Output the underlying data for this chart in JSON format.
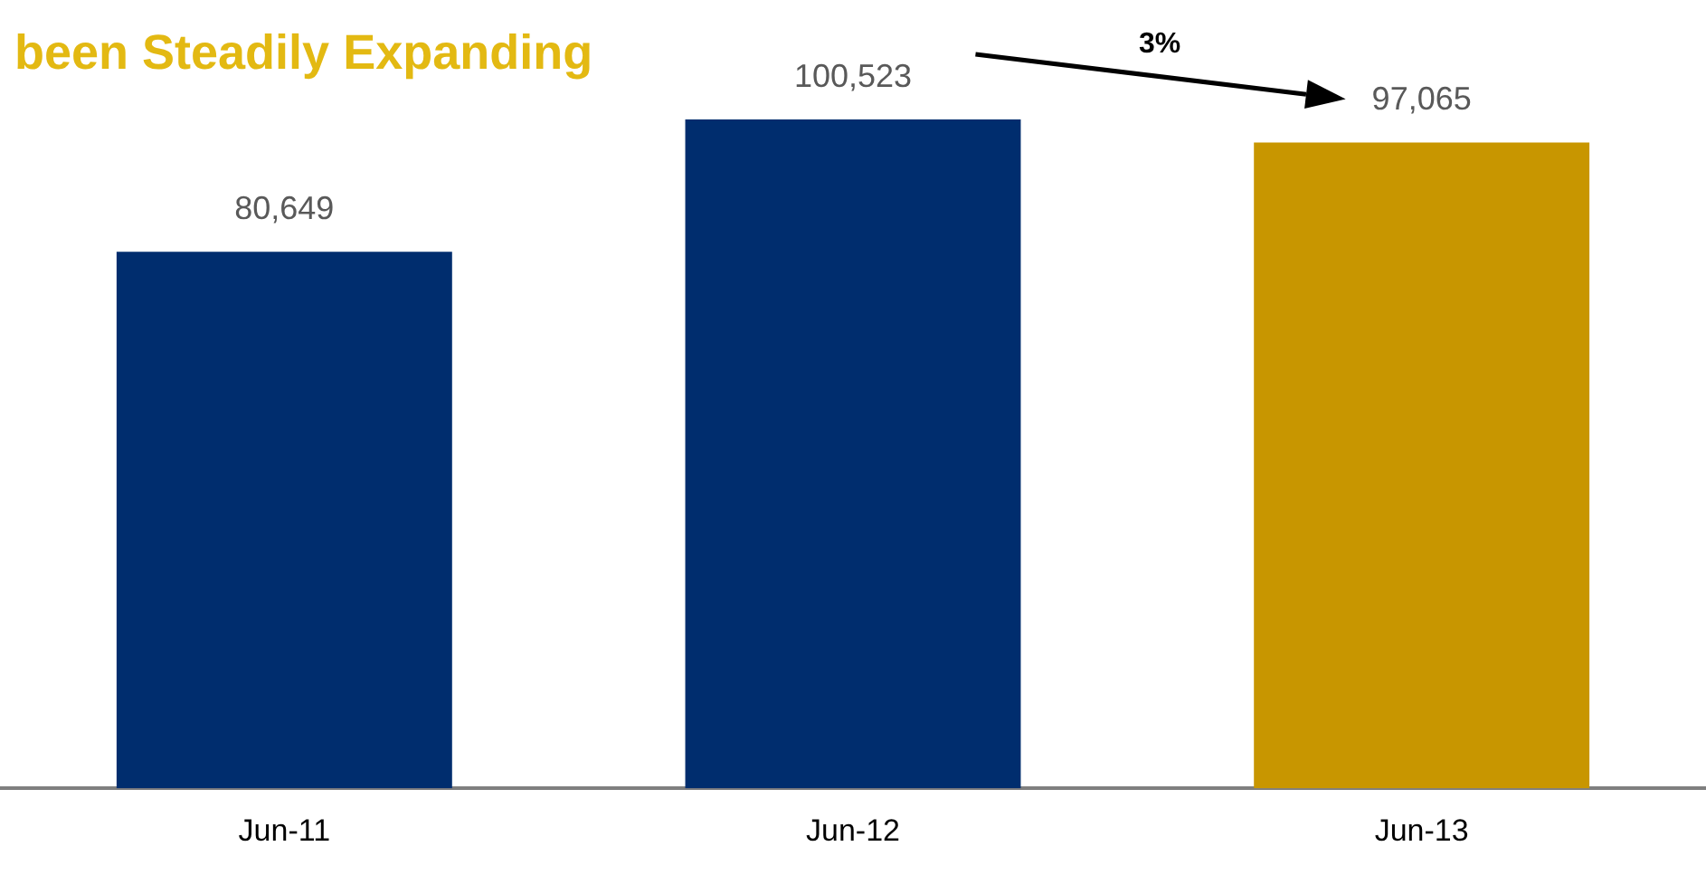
{
  "chart_data": {
    "type": "bar",
    "title": "been Steadily Expanding",
    "categories": [
      "Jun-11",
      "Jun-12",
      "Jun-13"
    ],
    "values": [
      80649,
      100523,
      97065
    ],
    "colors": [
      "#002d6e",
      "#002d6e",
      "#c89600"
    ],
    "value_labels": [
      "80,649",
      "100,523",
      "97,065"
    ],
    "grid": false,
    "legend": false,
    "annotations": [
      "3%"
    ]
  }
}
